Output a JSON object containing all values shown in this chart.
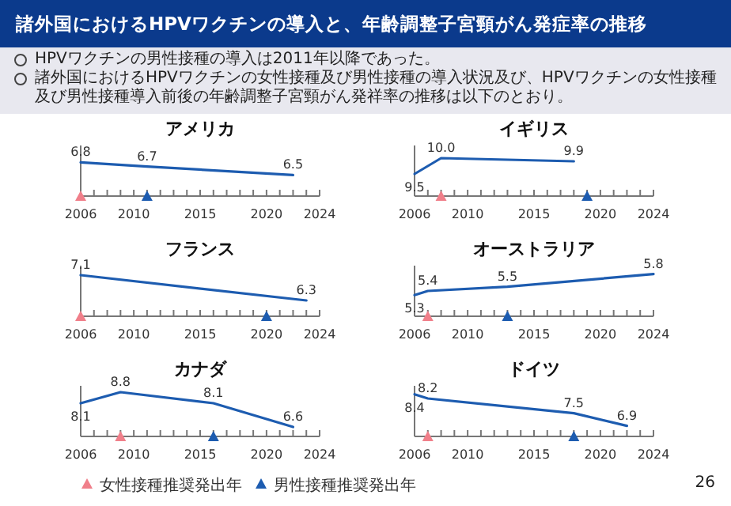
{
  "chart_data": [
    {
      "type": "line",
      "title": "アメリカ",
      "annotations": [
        "諸外国におけるHPVワクチンの導入と、年齢調整子宮頸がん発症率の推移",
        "HPVワクチンの男性接種の導入は2011年以降であった。",
        "諸外国におけるHPVワクチンの女性接種及び男性接種の導入状況及び、HPVワクチンの女性接種及び男性接種導入前後の年齢調整子宮頸がん発祥率の推移は以下のとおり。",
        "26"
      ],
      "xlim": [
        2006,
        2024
      ],
      "xticks": [
        2006,
        {
          "value": 2007,
          "label": null
        },
        {
          "value": 2008,
          "label": null
        },
        {
          "value": 2009,
          "label": null
        },
        2010,
        {
          "value": 2011,
          "label": null
        },
        {
          "value": 2012,
          "label": null
        },
        {
          "value": 2013,
          "label": null
        },
        {
          "value": 2014,
          "label": null
        },
        2015,
        {
          "value": 2016,
          "label": null
        },
        {
          "value": 2017,
          "label": null
        },
        {
          "value": 2018,
          "label": null
        },
        {
          "value": 2019,
          "label": null
        },
        2020,
        {
          "value": 2021,
          "label": null
        },
        {
          "value": 2022,
          "label": null
        },
        {
          "value": 2023,
          "label": null
        },
        2024
      ],
      "ylim": [
        6,
        7.2
      ],
      "tick_labels": "x",
      "series": [
        {
          "type": "line",
          "color": "#1d5cb0",
          "marker": "none",
          "x": [
            2006,
            2011,
            2022
          ],
          "values": [
            6.8,
            6.7,
            6.5
          ],
          "value_labels": [
            "6.8",
            "6.7",
            "6.5"
          ]
        },
        {
          "type": "scatter",
          "color": "#f07f8a",
          "marker": "triangle",
          "x": [
            2006
          ],
          "values": [
            6
          ]
        },
        {
          "type": "scatter",
          "color": "#1d5cb0",
          "marker": "triangle",
          "x": [
            2011
          ],
          "values": [
            6
          ]
        }
      ]
    },
    {
      "type": "line",
      "title": "イギリス",
      "xlim": [
        2006,
        2024
      ],
      "xticks": [
        2006,
        {
          "value": 2007,
          "label": null
        },
        {
          "value": 2008,
          "label": null
        },
        {
          "value": 2009,
          "label": null
        },
        2010,
        {
          "value": 2011,
          "label": null
        },
        {
          "value": 2012,
          "label": null
        },
        {
          "value": 2013,
          "label": null
        },
        {
          "value": 2014,
          "label": null
        },
        2015,
        {
          "value": 2016,
          "label": null
        },
        {
          "value": 2017,
          "label": null
        },
        {
          "value": 2018,
          "label": null
        },
        {
          "value": 2019,
          "label": null
        },
        2020,
        {
          "value": 2021,
          "label": null
        },
        {
          "value": 2022,
          "label": null
        },
        {
          "value": 2023,
          "label": null
        },
        2024
      ],
      "ylim": [
        8.8,
        10.4
      ],
      "tick_labels": "x",
      "series": [
        {
          "type": "line",
          "color": "#1d5cb0",
          "marker": "none",
          "x": [
            2006,
            2008,
            2018
          ],
          "values": [
            9.5,
            10.0,
            9.9
          ],
          "value_labels": [
            "9.5",
            "10.0",
            "9.9"
          ]
        },
        {
          "type": "scatter",
          "color": "#f07f8a",
          "marker": "triangle",
          "x": [
            2008
          ],
          "values": [
            8.8
          ]
        },
        {
          "type": "scatter",
          "color": "#1d5cb0",
          "marker": "triangle",
          "x": [
            2019
          ],
          "values": [
            8.8
          ]
        }
      ]
    },
    {
      "type": "line",
      "title": "フランス",
      "xlim": [
        2006,
        2024
      ],
      "xticks": [
        2006,
        {
          "value": 2007,
          "label": null
        },
        {
          "value": 2008,
          "label": null
        },
        {
          "value": 2009,
          "label": null
        },
        2010,
        {
          "value": 2011,
          "label": null
        },
        {
          "value": 2012,
          "label": null
        },
        {
          "value": 2013,
          "label": null
        },
        {
          "value": 2014,
          "label": null
        },
        2015,
        {
          "value": 2016,
          "label": null
        },
        {
          "value": 2017,
          "label": null
        },
        {
          "value": 2018,
          "label": null
        },
        {
          "value": 2019,
          "label": null
        },
        2020,
        {
          "value": 2021,
          "label": null
        },
        {
          "value": 2022,
          "label": null
        },
        {
          "value": 2023,
          "label": null
        },
        2024
      ],
      "ylim": [
        5.8,
        7.4
      ],
      "tick_labels": "x",
      "series": [
        {
          "type": "line",
          "color": "#1d5cb0",
          "marker": "none",
          "x": [
            2006,
            2023
          ],
          "values": [
            7.1,
            6.3
          ],
          "value_labels": [
            "7.1",
            "6.3"
          ]
        },
        {
          "type": "scatter",
          "color": "#f07f8a",
          "marker": "triangle",
          "x": [
            2006
          ],
          "values": [
            5.8
          ]
        },
        {
          "type": "scatter",
          "color": "#1d5cb0",
          "marker": "triangle",
          "x": [
            2020
          ],
          "values": [
            5.8
          ]
        }
      ]
    },
    {
      "type": "line",
      "title": "オーストラリア",
      "xlim": [
        2006,
        2024
      ],
      "xticks": [
        2006,
        {
          "value": 2007,
          "label": null
        },
        {
          "value": 2008,
          "label": null
        },
        {
          "value": 2009,
          "label": null
        },
        2010,
        {
          "value": 2011,
          "label": null
        },
        {
          "value": 2012,
          "label": null
        },
        {
          "value": 2013,
          "label": null
        },
        {
          "value": 2014,
          "label": null
        },
        2015,
        {
          "value": 2016,
          "label": null
        },
        {
          "value": 2017,
          "label": null
        },
        {
          "value": 2018,
          "label": null
        },
        {
          "value": 2019,
          "label": null
        },
        2020,
        {
          "value": 2021,
          "label": null
        },
        {
          "value": 2022,
          "label": null
        },
        {
          "value": 2023,
          "label": null
        },
        2024
      ],
      "ylim": [
        4.8,
        6
      ],
      "tick_labels": "x",
      "series": [
        {
          "type": "line",
          "color": "#1d5cb0",
          "marker": "none",
          "x": [
            2006,
            2007,
            2013,
            2024
          ],
          "values": [
            5.3,
            5.4,
            5.5,
            5.8
          ],
          "value_labels": [
            "5.3",
            "5.4",
            "5.5",
            "5.8"
          ]
        },
        {
          "type": "scatter",
          "color": "#f07f8a",
          "marker": "triangle",
          "x": [
            2007
          ],
          "values": [
            4.8
          ]
        },
        {
          "type": "scatter",
          "color": "#1d5cb0",
          "marker": "triangle",
          "x": [
            2013
          ],
          "values": [
            4.8
          ]
        }
      ]
    },
    {
      "type": "line",
      "title": "カナダ",
      "legend": "bottom",
      "xlim": [
        2006,
        2024
      ],
      "xticks": [
        2006,
        {
          "value": 2007,
          "label": null
        },
        {
          "value": 2008,
          "label": null
        },
        {
          "value": 2009,
          "label": null
        },
        2010,
        {
          "value": 2011,
          "label": null
        },
        {
          "value": 2012,
          "label": null
        },
        {
          "value": 2013,
          "label": null
        },
        {
          "value": 2014,
          "label": null
        },
        2015,
        {
          "value": 2016,
          "label": null
        },
        {
          "value": 2017,
          "label": null
        },
        {
          "value": 2018,
          "label": null
        },
        {
          "value": 2019,
          "label": null
        },
        2020,
        {
          "value": 2021,
          "label": null
        },
        {
          "value": 2022,
          "label": null
        },
        {
          "value": 2023,
          "label": null
        },
        2024
      ],
      "ylim": [
        6,
        9.2
      ],
      "tick_labels": "x",
      "series": [
        {
          "type": "line",
          "color": "#1d5cb0",
          "marker": "none",
          "x": [
            2006,
            2009,
            2016,
            2022
          ],
          "values": [
            8.1,
            8.8,
            8.1,
            6.6
          ],
          "value_labels": [
            "8.1",
            "8.8",
            "8.1",
            "6.6"
          ]
        },
        {
          "type": "scatter",
          "name": "女性接種推奨発出年",
          "color": "#f07f8a",
          "marker": "triangle",
          "x": [
            2009
          ],
          "values": [
            6
          ]
        },
        {
          "type": "scatter",
          "name": "男性接種推奨発出年",
          "color": "#1d5cb0",
          "marker": "triangle",
          "x": [
            2016
          ],
          "values": [
            6
          ]
        }
      ]
    },
    {
      "type": "line",
      "title": "ドイツ",
      "xlim": [
        2006,
        2024
      ],
      "xticks": [
        2006,
        {
          "value": 2007,
          "label": null
        },
        {
          "value": 2008,
          "label": null
        },
        {
          "value": 2009,
          "label": null
        },
        2010,
        {
          "value": 2011,
          "label": null
        },
        {
          "value": 2012,
          "label": null
        },
        {
          "value": 2013,
          "label": null
        },
        {
          "value": 2014,
          "label": null
        },
        2015,
        {
          "value": 2016,
          "label": null
        },
        {
          "value": 2017,
          "label": null
        },
        {
          "value": 2018,
          "label": null
        },
        {
          "value": 2019,
          "label": null
        },
        2020,
        {
          "value": 2021,
          "label": null
        },
        {
          "value": 2022,
          "label": null
        },
        {
          "value": 2023,
          "label": null
        },
        2024
      ],
      "ylim": [
        6.4,
        8.8
      ],
      "tick_labels": "x",
      "series": [
        {
          "type": "line",
          "color": "#1d5cb0",
          "marker": "none",
          "x": [
            2006,
            2007,
            2018,
            2022
          ],
          "values": [
            8.4,
            8.2,
            7.5,
            6.9
          ],
          "value_labels": [
            "8.4",
            "8.2",
            "7.5",
            "6.9"
          ]
        },
        {
          "type": "scatter",
          "color": "#f07f8a",
          "marker": "triangle",
          "x": [
            2007
          ],
          "values": [
            6.4
          ]
        },
        {
          "type": "scatter",
          "color": "#1d5cb0",
          "marker": "triangle",
          "x": [
            2018
          ],
          "values": [
            6.4
          ]
        }
      ]
    }
  ]
}
